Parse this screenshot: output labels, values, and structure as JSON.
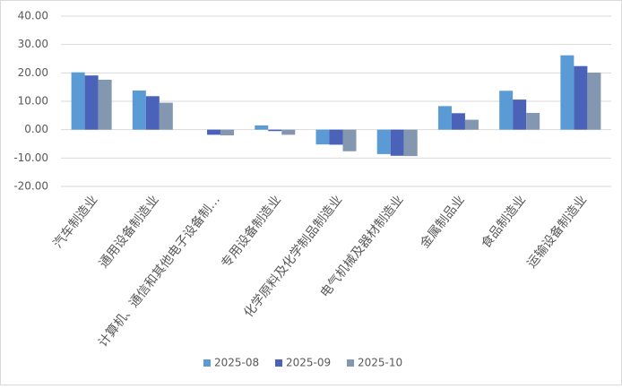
{
  "chart_data": {
    "type": "bar",
    "categories": [
      "汽车制造业",
      "通用设备制造业",
      "计算机、通信和其他电子设备制…",
      "专用设备制造业",
      "化学原料及化学制品制造业",
      "电气机械及器材制造业",
      "金属制品业",
      "食品制造业",
      "运输设备制造业"
    ],
    "series": [
      {
        "name": "2025-08",
        "color": "#5b9bd5",
        "values": [
          20.2,
          13.8,
          0,
          1.5,
          -5.2,
          -8.6,
          8.3,
          13.7,
          26.2
        ]
      },
      {
        "name": "2025-09",
        "color": "#4a63b8",
        "values": [
          19.1,
          11.8,
          -1.8,
          -0.5,
          -5.3,
          -9.2,
          5.8,
          10.6,
          22.4
        ]
      },
      {
        "name": "2025-10",
        "color": "#8497b0",
        "values": [
          17.6,
          9.5,
          -2.0,
          -1.8,
          -7.6,
          -9.3,
          3.5,
          5.9,
          20.1
        ]
      }
    ],
    "ylim": [
      -20,
      40
    ],
    "yticks": [
      {
        "value": -20,
        "label": "-20.00"
      },
      {
        "value": -10,
        "label": "-10.00"
      },
      {
        "value": 0,
        "label": "0.00"
      },
      {
        "value": 10,
        "label": "10.00"
      },
      {
        "value": 20,
        "label": "20.00"
      },
      {
        "value": 30,
        "label": "30.00"
      },
      {
        "value": 40,
        "label": "40.00"
      }
    ],
    "grid": true,
    "legend": "bottom"
  }
}
